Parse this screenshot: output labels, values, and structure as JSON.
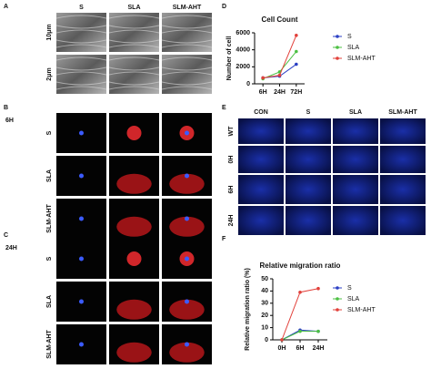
{
  "panel_a": {
    "label": "A",
    "columns": [
      "S",
      "SLA",
      "SLM-AHT"
    ],
    "rows": [
      "10μm",
      "2μm"
    ]
  },
  "panel_b": {
    "label": "B",
    "time": "6H",
    "rows": [
      "S",
      "SLA",
      "SLM-AHT"
    ]
  },
  "panel_c": {
    "label": "C",
    "time": "24H",
    "rows": [
      "S",
      "SLA",
      "SLM-AHT"
    ]
  },
  "panel_e": {
    "label": "E",
    "columns": [
      "CON",
      "S",
      "SLA",
      "SLM-AHT"
    ],
    "rows": [
      "WT",
      "0H",
      "6H",
      "24H"
    ]
  },
  "chart_data": [
    {
      "type": "line",
      "panel_label": "D",
      "title": "Cell Count",
      "y_label": "Number of cell",
      "categories": [
        "6H",
        "24H",
        "72H"
      ],
      "series": [
        {
          "name": "S",
          "color": "#2b3fc4",
          "values": [
            700,
            900,
            2300
          ]
        },
        {
          "name": "SLA",
          "color": "#4cc043",
          "values": [
            600,
            1400,
            3800
          ]
        },
        {
          "name": "SLM-AHT",
          "color": "#e2403a",
          "values": [
            700,
            1000,
            5700
          ]
        }
      ],
      "ylim": [
        0,
        6000
      ],
      "yticks": [
        0,
        2000,
        4000,
        6000
      ]
    },
    {
      "type": "line",
      "panel_label": "F",
      "title": "Relative migration ratio",
      "y_label": "Relative migration ratio (%)",
      "categories": [
        "0H",
        "6H",
        "24H"
      ],
      "series": [
        {
          "name": "S",
          "color": "#2b3fc4",
          "values": [
            0,
            8,
            7
          ]
        },
        {
          "name": "SLA",
          "color": "#4cc043",
          "values": [
            0,
            7,
            7
          ]
        },
        {
          "name": "SLM-AHT",
          "color": "#e2403a",
          "values": [
            0,
            39,
            42
          ]
        }
      ],
      "ylim": [
        0,
        50
      ],
      "yticks": [
        0,
        10,
        20,
        30,
        40,
        50
      ]
    }
  ]
}
